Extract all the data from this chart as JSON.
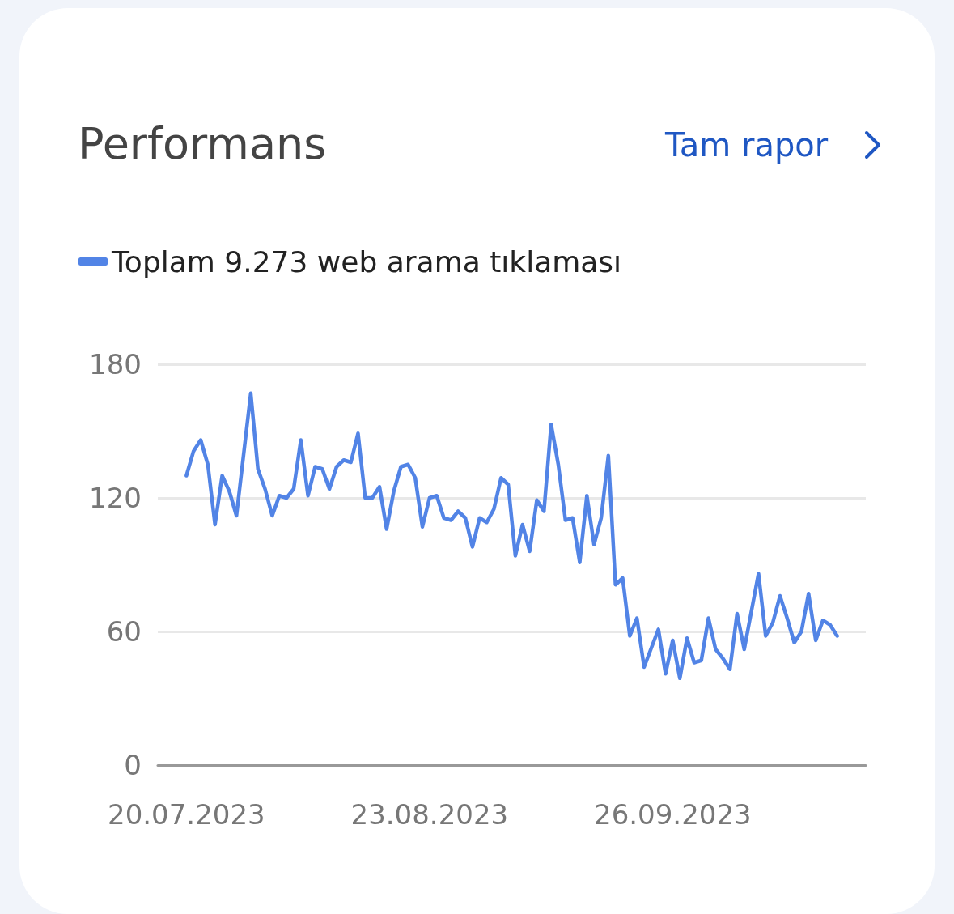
{
  "chart_data": {
    "type": "line",
    "title": "Performans",
    "annotations": [
      "Tam rapor"
    ],
    "x": [
      "2023-07-20",
      "2023-07-21",
      "2023-07-22",
      "2023-07-23",
      "2023-07-24",
      "2023-07-25",
      "2023-07-26",
      "2023-07-27",
      "2023-07-29",
      "2023-07-30",
      "2023-07-31",
      "2023-08-01",
      "2023-08-02",
      "2023-08-03",
      "2023-08-04",
      "2023-08-05",
      "2023-08-06",
      "2023-08-07",
      "2023-08-08",
      "2023-08-09",
      "2023-08-10",
      "2023-08-11",
      "2023-08-12",
      "2023-08-13",
      "2023-08-14",
      "2023-08-15",
      "2023-08-16",
      "2023-08-17",
      "2023-08-18",
      "2023-08-19",
      "2023-08-20",
      "2023-08-21",
      "2023-08-22",
      "2023-08-23",
      "2023-08-24",
      "2023-08-25",
      "2023-08-26",
      "2023-08-27",
      "2023-08-28",
      "2023-08-29",
      "2023-08-30",
      "2023-08-31",
      "2023-09-01",
      "2023-09-02",
      "2023-09-03",
      "2023-09-04",
      "2023-09-05",
      "2023-09-06",
      "2023-09-07",
      "2023-09-08",
      "2023-09-09",
      "2023-09-10",
      "2023-09-11",
      "2023-09-12",
      "2023-09-13",
      "2023-09-14",
      "2023-09-15",
      "2023-09-16",
      "2023-09-17",
      "2023-09-18",
      "2023-09-19",
      "2023-09-20",
      "2023-09-21",
      "2023-09-22",
      "2023-09-24",
      "2023-09-25",
      "2023-09-26",
      "2023-09-27",
      "2023-09-28",
      "2023-09-29",
      "2023-09-30",
      "2023-10-01",
      "2023-10-02",
      "2023-10-03",
      "2023-10-04",
      "2023-10-05",
      "2023-10-06",
      "2023-10-08",
      "2023-10-09",
      "2023-10-10",
      "2023-10-11",
      "2023-10-12",
      "2023-10-13",
      "2023-10-14",
      "2023-10-15",
      "2023-10-16",
      "2023-10-17",
      "2023-10-18",
      "2023-10-19"
    ],
    "series": [
      {
        "name": "Toplam 9.273 web arama tıklaması",
        "color": "#5284e6",
        "values": [
          130,
          141,
          146,
          135,
          108,
          130,
          123,
          112,
          167,
          133,
          124,
          112,
          121,
          120,
          124,
          146,
          121,
          134,
          133,
          124,
          134,
          137,
          136,
          149,
          120,
          120,
          125,
          106,
          123,
          134,
          135,
          129,
          107,
          120,
          121,
          111,
          110,
          114,
          111,
          98,
          111,
          109,
          115,
          129,
          126,
          94,
          108,
          96,
          119,
          114,
          153,
          135,
          110,
          111,
          91,
          121,
          99,
          111,
          139,
          81,
          84,
          58,
          66,
          44,
          61,
          41,
          56,
          39,
          57,
          46,
          47,
          66,
          52,
          48,
          43,
          68,
          52,
          86,
          58,
          64,
          76,
          66,
          55,
          60,
          77,
          56,
          65,
          63,
          58
        ]
      }
    ],
    "xlim": [
      "2023-07-16",
      "2023-10-23"
    ],
    "xticks": [
      {
        "value": "2023-07-20",
        "label": "20.07.2023"
      },
      {
        "value": "2023-08-23",
        "label": "23.08.2023"
      },
      {
        "value": "2023-09-26",
        "label": "26.09.2023"
      }
    ],
    "ylim": [
      0,
      180
    ],
    "yticks": [
      0,
      60,
      120,
      180
    ],
    "grid": "y",
    "legend": "top left",
    "marker": "none",
    "line_style": "solid"
  }
}
